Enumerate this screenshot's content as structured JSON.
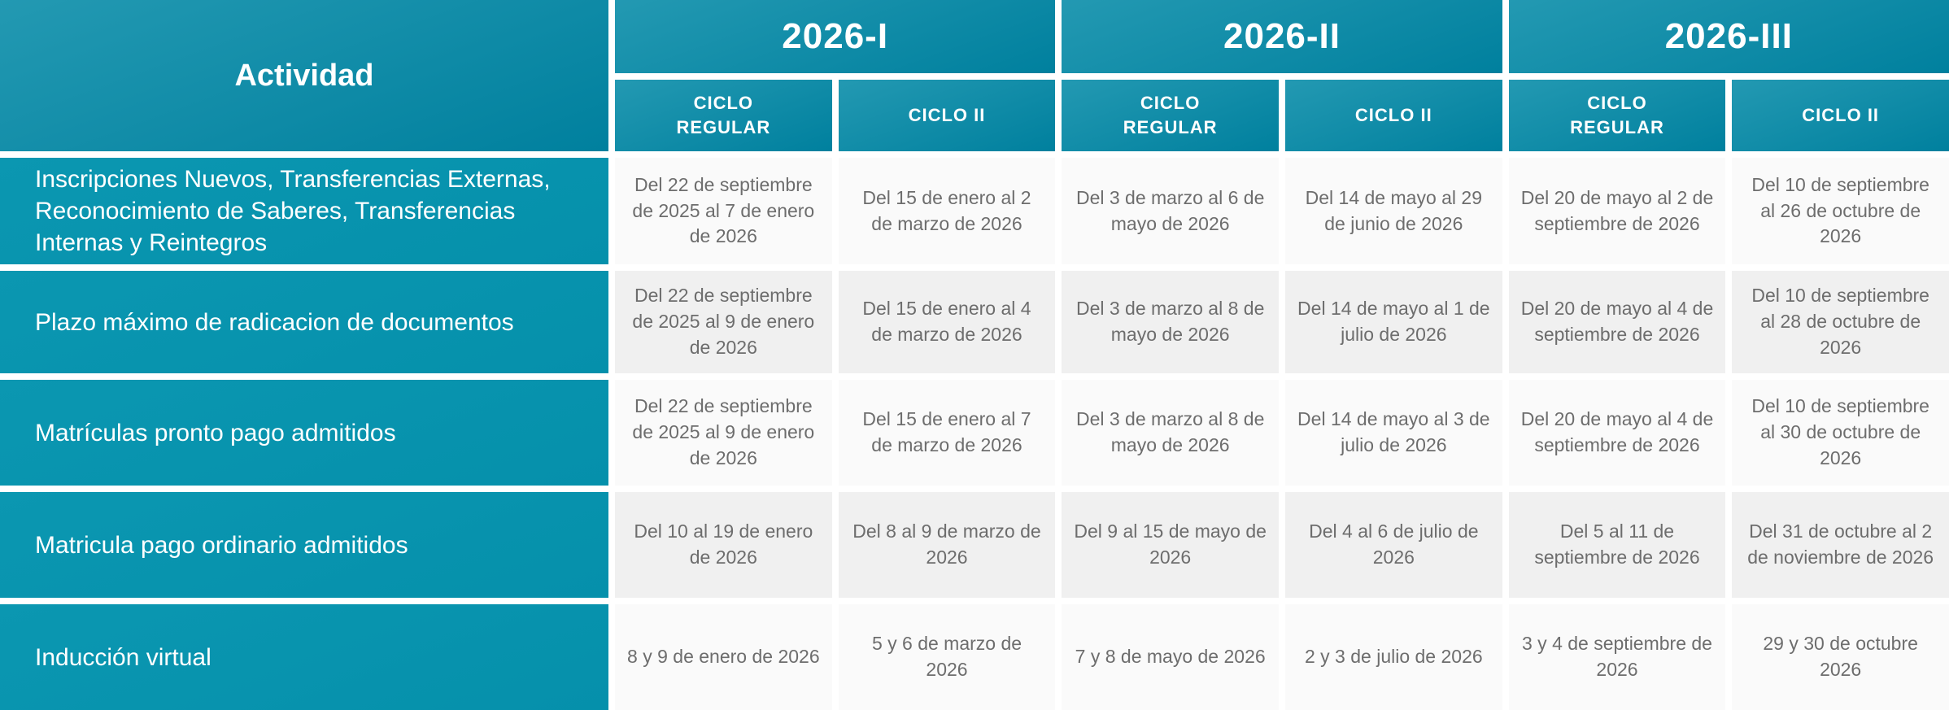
{
  "colors": {
    "header_teal_top": "#2399b2",
    "header_teal_bottom": "#00809e",
    "row_teal": "#0995af",
    "row_bg_light": "#fafafa",
    "row_bg_gray": "#f0f0f0",
    "date_text": "#6d6d6d",
    "header_text": "#ffffff"
  },
  "table": {
    "activity_header": "Actividad",
    "terms": [
      {
        "label": "2026-I"
      },
      {
        "label": "2026-II"
      },
      {
        "label": "2026-III"
      }
    ],
    "subheaders": [
      "CICLO\nREGULAR",
      "CICLO II",
      "CICLO\nREGULAR",
      "CICLO II",
      "CICLO\nREGULAR",
      "CICLO II"
    ],
    "rows": [
      {
        "activity": "Inscripciones Nuevos, Transferencias Externas, Reconocimiento de Saberes, Transferencias Internas y Reintegros",
        "dates": [
          "Del 22 de septiembre de 2025 al 7 de enero de 2026",
          "Del 15 de enero al 2 de marzo de 2026",
          "Del 3 de marzo al 6 de mayo de 2026",
          "Del 14 de mayo al 29 de junio de 2026",
          "Del 20 de mayo al 2 de septiembre de 2026",
          "Del 10 de septiembre al 26 de octubre de 2026"
        ]
      },
      {
        "activity": "Plazo máximo de radicacion de documentos",
        "dates": [
          "Del 22 de septiembre de 2025 al 9 de enero de 2026",
          "Del 15 de enero al 4 de marzo de 2026",
          "Del 3 de marzo al 8 de mayo de 2026",
          "Del 14 de mayo al 1 de julio de 2026",
          "Del 20 de mayo al 4 de septiembre de 2026",
          "Del 10 de septiembre al 28 de octubre de 2026"
        ]
      },
      {
        "activity": "Matrículas pronto pago admitidos",
        "dates": [
          "Del 22 de septiembre de 2025 al 9 de enero de 2026",
          "Del 15 de enero al 7 de marzo de 2026",
          "Del 3 de marzo al 8 de mayo de 2026",
          "Del 14 de mayo al 3 de julio de 2026",
          "Del 20 de mayo al 4 de septiembre de 2026",
          "Del 10 de septiembre al 30 de octubre de 2026"
        ]
      },
      {
        "activity": "Matricula pago ordinario admitidos",
        "dates": [
          "Del 10 al 19 de enero de 2026",
          "Del 8 al 9 de marzo de 2026",
          "Del 9 al 15 de mayo de 2026",
          "Del 4 al 6 de julio de 2026",
          "Del 5 al 11 de septiembre de 2026",
          "Del 31 de octubre al 2 de noviembre de 2026"
        ]
      },
      {
        "activity": "Inducción virtual",
        "dates": [
          "8 y 9 de enero de 2026",
          "5 y 6 de marzo de 2026",
          "7 y 8 de mayo de 2026",
          "2 y 3 de julio de 2026",
          "3 y 4 de septiembre de 2026",
          "29 y 30 de octubre 2026"
        ]
      }
    ]
  }
}
